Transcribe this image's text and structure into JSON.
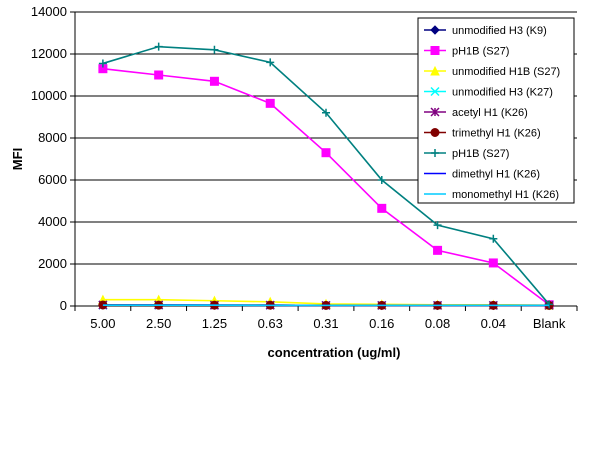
{
  "chart_data": {
    "type": "line",
    "xlabel": "concentration (ug/ml)",
    "ylabel": "MFI",
    "categories": [
      "5.00",
      "2.50",
      "1.25",
      "0.63",
      "0.31",
      "0.16",
      "0.08",
      "0.04",
      "Blank"
    ],
    "ylim": [
      0,
      14000
    ],
    "yticks": [
      0,
      2000,
      4000,
      6000,
      8000,
      10000,
      12000,
      14000
    ],
    "grid": "horizontal",
    "legend_position": "right",
    "series": [
      {
        "name": "unmodified H3 (K9)",
        "color": "#000080",
        "marker": "diamond",
        "values": [
          50,
          50,
          40,
          40,
          30,
          30,
          30,
          30,
          30
        ]
      },
      {
        "name": "pH1B (S27)",
        "color": "#FF00FF",
        "marker": "square",
        "values": [
          11300,
          11000,
          10700,
          9650,
          7300,
          4650,
          2650,
          2050,
          60
        ]
      },
      {
        "name": "unmodified H1B (S27)",
        "color": "#FFFF00",
        "marker": "triangle",
        "values": [
          300,
          300,
          250,
          200,
          100,
          80,
          60,
          60,
          40
        ]
      },
      {
        "name": "unmodified H3 (K27)",
        "color": "#00FFFF",
        "marker": "x",
        "values": [
          40,
          40,
          40,
          40,
          30,
          30,
          30,
          30,
          30
        ]
      },
      {
        "name": "acetyl H1 (K26)",
        "color": "#800080",
        "marker": "star",
        "values": [
          50,
          50,
          40,
          40,
          30,
          30,
          30,
          30,
          30
        ]
      },
      {
        "name": "trimethyl H1 (K26)",
        "color": "#800000",
        "marker": "circle",
        "values": [
          50,
          40,
          40,
          40,
          30,
          30,
          30,
          30,
          30
        ]
      },
      {
        "name": "pH1B (S27)",
        "color": "#008080",
        "marker": "plus",
        "values": [
          11550,
          12350,
          12200,
          11600,
          9200,
          6000,
          3850,
          3200,
          80
        ]
      },
      {
        "name": "dimethyl H1 (K26)",
        "color": "#0000FF",
        "marker": "none",
        "values": [
          40,
          40,
          40,
          30,
          30,
          30,
          30,
          30,
          30
        ]
      },
      {
        "name": "monomethyl H1 (K26)",
        "color": "#00CCFF",
        "marker": "none",
        "values": [
          40,
          40,
          40,
          30,
          30,
          30,
          30,
          30,
          30
        ]
      }
    ]
  }
}
